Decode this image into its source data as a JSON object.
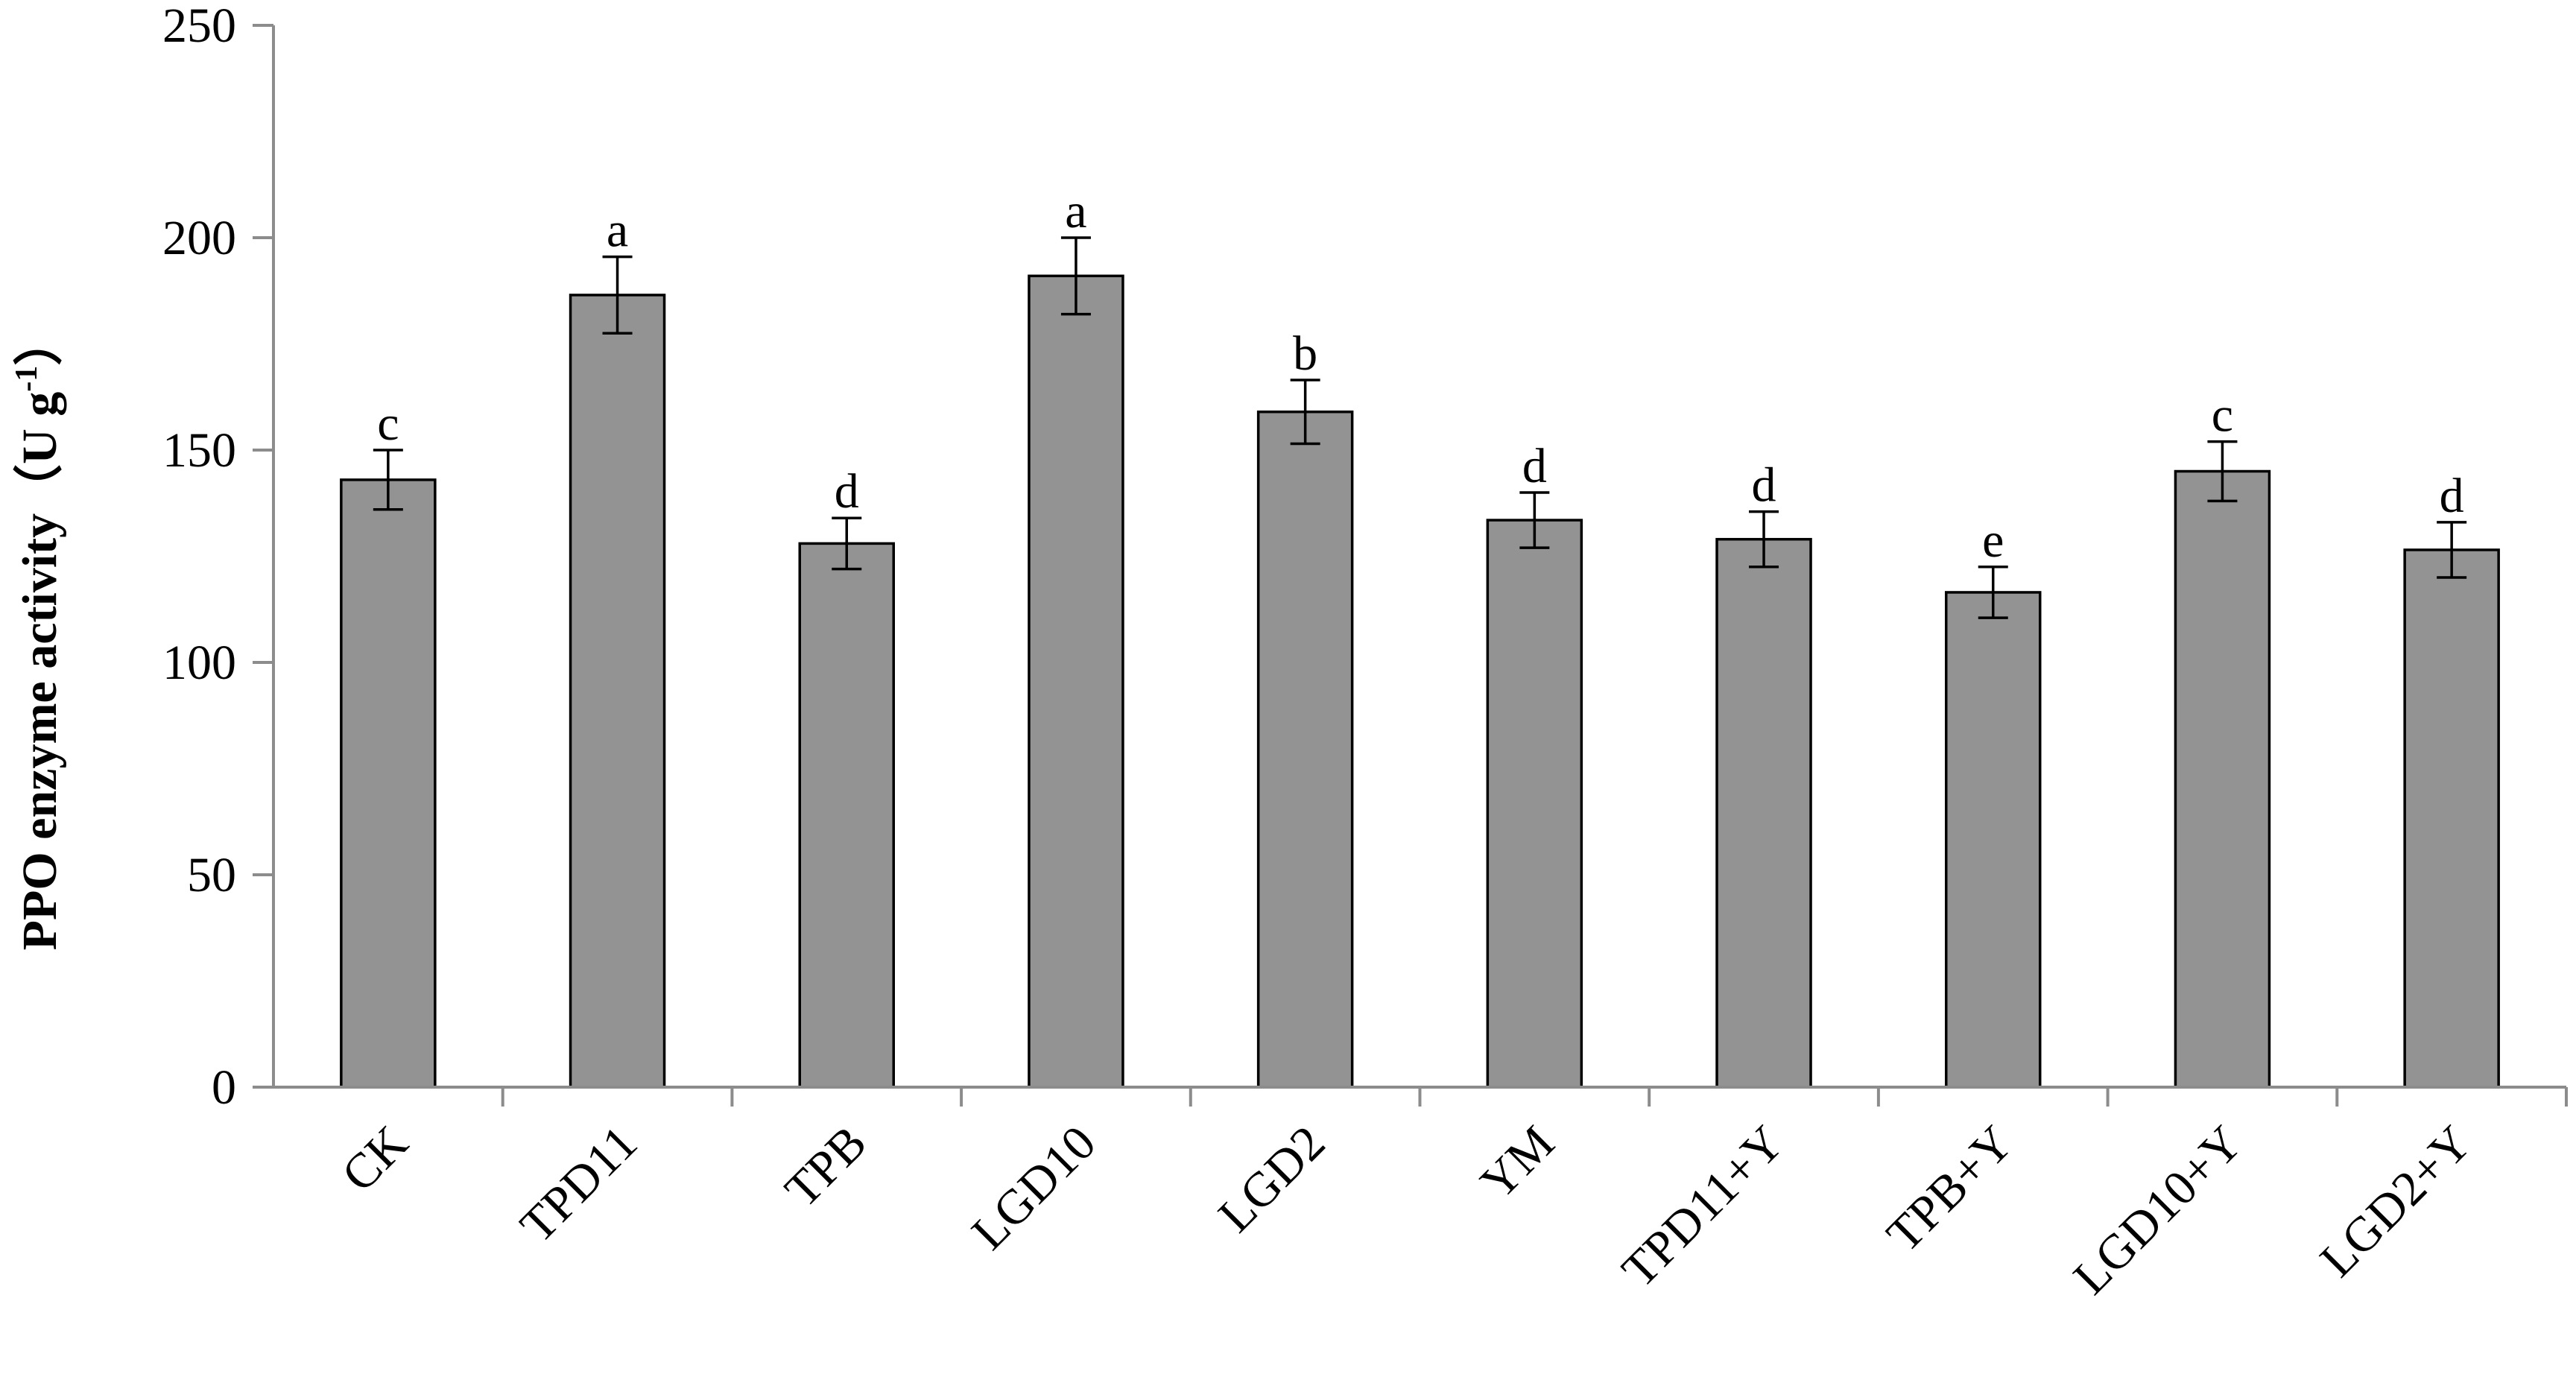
{
  "chart_data": {
    "type": "bar",
    "title": "",
    "xlabel": "",
    "ylabel": "PPO enzyme activity（U g",
    "ylabel_sup": "-1",
    "ylabel_close": "）",
    "ylim": [
      0,
      250
    ],
    "yticks": [
      0,
      50,
      100,
      150,
      200,
      250
    ],
    "grid": false,
    "legend": "none",
    "bar_color": "#939393",
    "categories": [
      "CK",
      "TPD11",
      "TPB",
      "LGD10",
      "LGD2",
      "YM",
      "TPD11+Y",
      "TPB+Y",
      "LGD10+Y",
      "LGD2+Y"
    ],
    "values": [
      143,
      186.5,
      128,
      191,
      159,
      133.5,
      129,
      116.5,
      145,
      126.5
    ],
    "errors": [
      7,
      9,
      6,
      9,
      7.5,
      6.5,
      6.5,
      6,
      7,
      6.5
    ],
    "significance": [
      "c",
      "a",
      "d",
      "a",
      "b",
      "d",
      "d",
      "e",
      "c",
      "d"
    ]
  }
}
